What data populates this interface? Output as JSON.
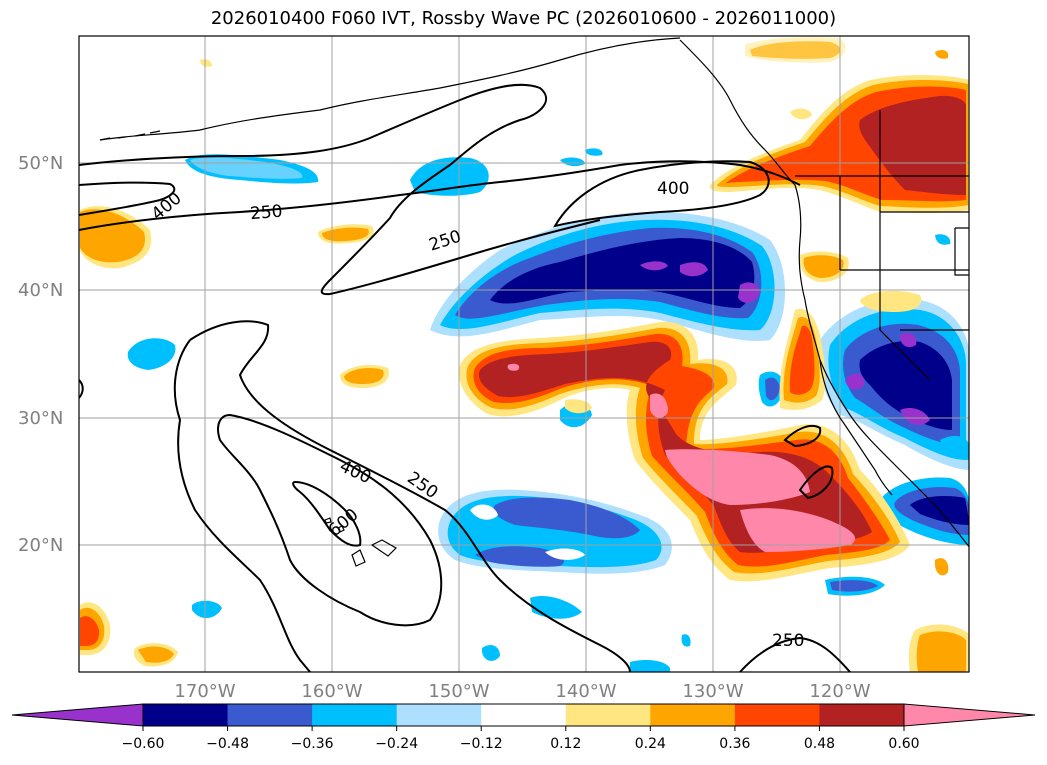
{
  "title": "2026010400 F060 IVT, Rossby Wave PC (2026010600 - 2026011000)",
  "lat_labels": [
    "50°N",
    "40°N",
    "30°N",
    "20°N"
  ],
  "lon_labels": [
    "170°W",
    "160°W",
    "150°W",
    "140°W",
    "130°W",
    "120°W"
  ],
  "contour_labels": [
    "400",
    "250",
    "250",
    "400",
    "400",
    "250",
    "600",
    "250"
  ],
  "colorbar": {
    "ticks": [
      "−0.60",
      "−0.48",
      "−0.36",
      "−0.24",
      "−0.12",
      "0.12",
      "0.24",
      "0.36",
      "0.48",
      "0.60"
    ],
    "colors": [
      "#9932CC",
      "#00008B",
      "#3A5BCF",
      "#00BFFF",
      "#ADDFFF",
      "#FFFFFF",
      "#FFE680",
      "#FFA500",
      "#FF4500",
      "#B22222",
      "#FF88AA"
    ],
    "extend": "both"
  },
  "contour_levels": [
    250,
    400,
    600
  ]
}
